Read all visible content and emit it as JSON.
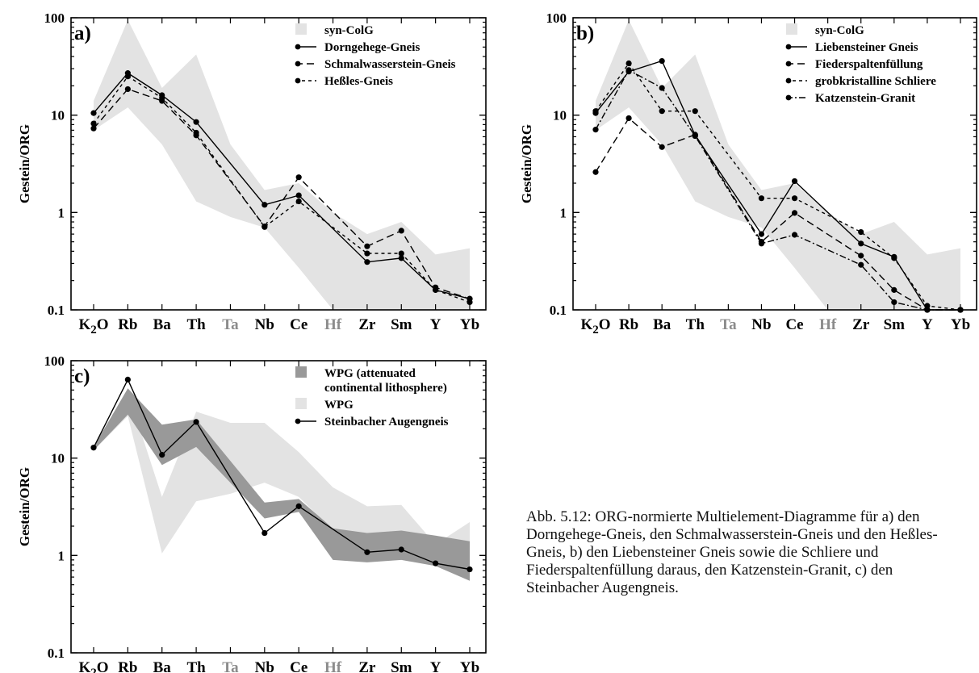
{
  "elements": [
    "K2O",
    "Rb",
    "Ba",
    "Th",
    "Ta",
    "Nb",
    "Ce",
    "Hf",
    "Zr",
    "Sm",
    "Y",
    "Yb"
  ],
  "grey_elements": [
    "Ta",
    "Hf"
  ],
  "caption": "Abb. 5.12: ORG-normierte Multielement-Diagramme für a) den Dorngehege-Gneis, den Schmalwasserstein-Gneis und den Heßles-Gneis, b) den Liebensteiner Gneis sowie die Schliere und Fiederspaltenfüllung daraus, den Katzenstein-Granit, c) den Steinbacher Augengneis.",
  "chart_data": [
    {
      "type": "line",
      "panel": "a)",
      "ylabel": "Gestein/ORG",
      "yscale": "log",
      "ylim": [
        0.1,
        100
      ],
      "yticks": [
        "0.1",
        "1",
        "10",
        "100"
      ],
      "categories": [
        "K2O",
        "Rb",
        "Ba",
        "Th",
        "Ta",
        "Nb",
        "Ce",
        "Hf",
        "Zr",
        "Sm",
        "Y",
        "Yb"
      ],
      "legend_position": "top-right",
      "fields": [
        {
          "name": "syn-ColG",
          "color": "#e3e3e3",
          "upper": [
            14,
            95,
            19,
            42,
            5,
            1.7,
            2.0,
            1.0,
            0.6,
            0.8,
            0.37,
            0.43
          ],
          "lower": [
            7,
            12,
            5,
            1.3,
            0.9,
            0.7,
            0.27,
            0.1,
            0.1,
            0.1,
            0.1,
            0.1
          ]
        }
      ],
      "series": [
        {
          "name": "Dorngehege-Gneis",
          "dash": "solid",
          "values": [
            10.5,
            27,
            16,
            8.5,
            null,
            1.2,
            1.5,
            null,
            0.31,
            0.34,
            0.16,
            0.13
          ]
        },
        {
          "name": "Schmalwasserstein-Gneis",
          "dash": "long",
          "values": [
            7.3,
            18.5,
            14,
            6.2,
            null,
            0.72,
            2.3,
            null,
            0.45,
            0.65,
            0.17,
            0.13
          ]
        },
        {
          "name": "Heßles-Gneis",
          "dash": "short",
          "values": [
            8.2,
            25,
            15,
            6.6,
            null,
            0.71,
            1.3,
            null,
            0.38,
            0.38,
            0.16,
            0.12
          ]
        }
      ]
    },
    {
      "type": "line",
      "panel": "b)",
      "ylabel": "Gestein/ORG",
      "yscale": "log",
      "ylim": [
        0.1,
        100
      ],
      "yticks": [
        "0.1",
        "1",
        "10",
        "100"
      ],
      "categories": [
        "K2O",
        "Rb",
        "Ba",
        "Th",
        "Ta",
        "Nb",
        "Ce",
        "Hf",
        "Zr",
        "Sm",
        "Y",
        "Yb"
      ],
      "legend_position": "top-right",
      "fields": [
        {
          "name": "syn-ColG",
          "color": "#e3e3e3",
          "upper": [
            14,
            95,
            19,
            42,
            5,
            1.7,
            2.0,
            1.0,
            0.6,
            0.8,
            0.37,
            0.43
          ],
          "lower": [
            7,
            12,
            5,
            1.3,
            0.9,
            0.7,
            0.27,
            0.1,
            0.1,
            0.1,
            0.1,
            0.1
          ]
        }
      ],
      "series": [
        {
          "name": "Liebensteiner Gneis",
          "dash": "solid",
          "values": [
            10.5,
            28,
            36,
            6.2,
            null,
            0.6,
            2.1,
            null,
            0.48,
            0.35,
            0.1,
            0.1
          ]
        },
        {
          "name": "Fiederspaltenfüllung",
          "dash": "long",
          "values": [
            2.6,
            9.3,
            4.7,
            6.3,
            null,
            0.5,
            0.99,
            null,
            0.36,
            0.16,
            0.1,
            0.1
          ]
        },
        {
          "name": "grobkristalline Schliere",
          "dash": "short",
          "values": [
            11,
            34,
            11,
            11,
            null,
            1.4,
            1.4,
            null,
            0.63,
            0.34,
            0.11,
            0.1
          ]
        },
        {
          "name": "Katzenstein-Granit",
          "dash": "dashdot",
          "values": [
            7.1,
            29,
            19,
            6.1,
            null,
            0.48,
            0.59,
            null,
            0.29,
            0.12,
            0.1,
            0.1
          ]
        }
      ]
    },
    {
      "type": "line",
      "panel": "c)",
      "ylabel": "Gestein/ORG",
      "yscale": "log",
      "ylim": [
        0.1,
        100
      ],
      "yticks": [
        "0.1",
        "1",
        "10",
        "100"
      ],
      "categories": [
        "K2O",
        "Rb",
        "Ba",
        "Th",
        "Ta",
        "Nb",
        "Ce",
        "Hf",
        "Zr",
        "Sm",
        "Y",
        "Yb"
      ],
      "legend_position": "top-right",
      "fields": [
        {
          "name": "WPG",
          "color": "#e3e3e3",
          "upper": [
            13,
            48,
            4.0,
            30,
            23,
            23,
            11.5,
            5.0,
            3.2,
            3.3,
            1.3,
            2.2
          ],
          "lower": [
            12,
            27,
            1.05,
            3.6,
            4.3,
            5.6,
            4.0,
            1.8,
            1.5,
            1.2,
            1.0,
            0.9
          ]
        },
        {
          "name": "WPG (attenuated continental lithosphere)",
          "line2": "continental lithosphere)",
          "line1": "WPG (attenuated",
          "color": "#999999",
          "upper": [
            13,
            52,
            22,
            25,
            null,
            3.5,
            3.8,
            1.9,
            1.7,
            1.8,
            1.6,
            1.4
          ],
          "lower": [
            12,
            28,
            8.5,
            13,
            null,
            2.4,
            2.8,
            0.9,
            0.85,
            0.9,
            0.78,
            0.55
          ]
        }
      ],
      "series": [
        {
          "name": "Steinbacher Augengneis",
          "dash": "solid",
          "values": [
            12.8,
            64,
            10.8,
            23.5,
            null,
            1.7,
            3.2,
            null,
            1.08,
            1.15,
            0.83,
            0.72
          ]
        }
      ]
    }
  ],
  "style": {
    "grey_field": "#e3e3e3",
    "dark_field": "#999999",
    "grey_label": "#8c8c8c",
    "ink": "#000000"
  }
}
